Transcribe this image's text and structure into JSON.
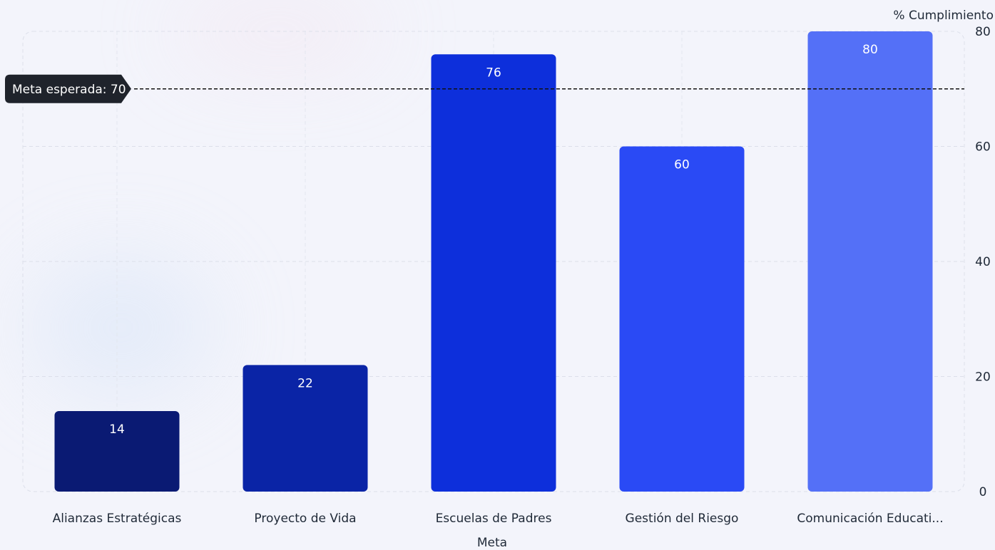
{
  "chart_data": {
    "type": "bar",
    "title": "",
    "xlabel": "Meta",
    "ylabel": "% Cumplimiento",
    "ylim": [
      0,
      80
    ],
    "yticks": [
      0,
      20,
      40,
      60,
      80
    ],
    "y_axis_side": "right",
    "grid": true,
    "categories": [
      "Alianzas Estratégicas",
      "Proyecto de Vida",
      "Escuelas de Padres",
      "Gestión del Riesgo",
      "Comunicación Educati..."
    ],
    "values": [
      14,
      22,
      76,
      60,
      80
    ],
    "bar_colors": [
      "#0a1a73",
      "#0a24a6",
      "#0d2fdb",
      "#2a4af5",
      "#5470f7"
    ],
    "label_color": "#ffffff",
    "reference_line": {
      "value": 70,
      "label": "Meta esperada: 70",
      "style": "dashed",
      "color": "#111111"
    }
  }
}
